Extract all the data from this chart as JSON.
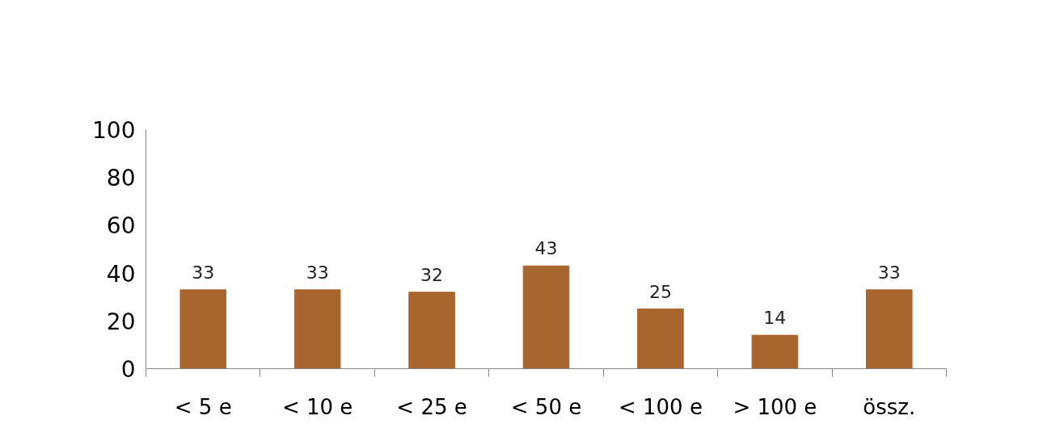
{
  "chart_data": {
    "type": "bar",
    "categories": [
      "< 5 e",
      "< 10 e",
      "< 25 e",
      "< 50 e",
      "< 100 e",
      "> 100 e",
      "össz."
    ],
    "values": [
      33,
      33,
      32,
      43,
      25,
      14,
      33
    ],
    "color": "#a9652e",
    "ylim": [
      0,
      100
    ],
    "yticks": [
      0,
      20,
      40,
      60,
      80,
      100
    ],
    "data_labels": true,
    "grid": false
  }
}
